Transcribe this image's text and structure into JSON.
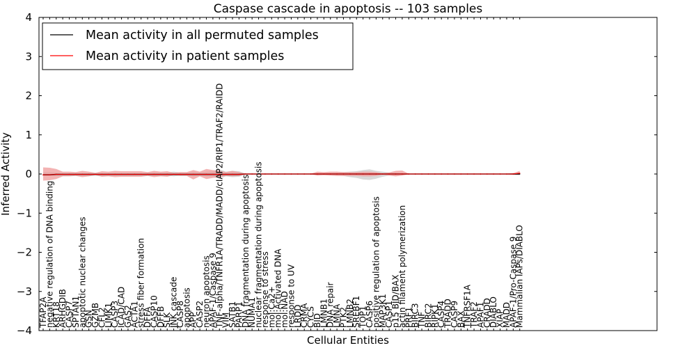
{
  "chart_data": {
    "type": "line",
    "title": "Caspase cascade in apoptosis -- 103 samples",
    "xlabel": "Cellular Entities",
    "ylabel": "Inferred Activity",
    "ylim": [
      -4,
      4
    ],
    "yticks": [
      -4,
      -3,
      -2,
      -1,
      0,
      1,
      2,
      3,
      4
    ],
    "legend": {
      "position": "top-left",
      "entries": [
        {
          "label": "Mean activity in all permuted samples",
          "color": "#000000"
        },
        {
          "label": "Mean activity in patient samples",
          "color": "#ff0000"
        }
      ]
    },
    "categories": [
      "TFAP2A",
      "negative regulation of DNA binding",
      "KRT18",
      "ARHGDIB",
      "CASP7",
      "SPTAN1",
      "apoptotic nuclear changes",
      "GSN",
      "GZMB",
      "CFL2",
      "LIMK1",
      "CASP3",
      "ICAD/CAD",
      "GAS2",
      "ACTA1",
      "stress fiber formation",
      "DFFA",
      "CASP10",
      "DFFB",
      "SLK",
      "JNK cascade",
      "CASP8",
      "apoptosis",
      "APP",
      "CASP2",
      "neuron apoptosis",
      "APAF-1/Caspase 9",
      "TNF-alpha/TNFR1A/TRADD/MADD/cIAP2/RIP1/TRAF2/RAIDD",
      "VIM",
      "SATB1",
      "PARP1",
      "DNA fragmentation during apoptosis",
      "NUMA1",
      "nuclear fragmentation during apoptosis",
      "response to stress",
      "mol:Ca2+",
      "mol:Activated DNA",
      "mol:NAD",
      "response to UV",
      "LRDD",
      "CRMA",
      "CYCS",
      "BID",
      "LMNB1",
      "DNA repair",
      "LMNA",
      "PTK2",
      "LMNB2",
      "SREBF1",
      "TOP1",
      "CASP6",
      "positive regulation of apoptosis",
      "MAP3K1",
      "CASP1",
      "p15 BID/BAX",
      "actin filament polymerization",
      "PRF1",
      "BIRC3",
      "TNF",
      "BIRC2",
      "RIPK1",
      "CASP4",
      "TRADD",
      "CASP9",
      "BAX",
      "TNFRSF1A",
      "TRAF2",
      "APAF1",
      "CRADD",
      "DIABLO",
      "XIAP",
      "MADD",
      "APAF-1/Pro-Caspase 9",
      "Mammalian IAPs/DIABLO"
    ],
    "series": [
      {
        "name": "Mean activity in all permuted samples",
        "color": "#000000",
        "values": [
          -0.02,
          -0.02,
          -0.01,
          -0.01,
          -0.01,
          -0.01,
          -0.01,
          -0.01,
          -0.01,
          -0.01,
          -0.01,
          -0.01,
          -0.01,
          -0.01,
          -0.01,
          -0.01,
          -0.01,
          -0.01,
          -0.01,
          -0.01,
          -0.01,
          -0.01,
          -0.01,
          -0.01,
          -0.01,
          -0.01,
          -0.01,
          -0.01,
          -0.01,
          -0.01,
          -0.01,
          0,
          0,
          0,
          0,
          0,
          0,
          0,
          0,
          0,
          0,
          0,
          0,
          0,
          0,
          0,
          0,
          0,
          0,
          0,
          0,
          0,
          0,
          0,
          0,
          0,
          0,
          0,
          0,
          0,
          0,
          0,
          0,
          0,
          0,
          0,
          0,
          0,
          0,
          0,
          0,
          0,
          0,
          0
        ]
      },
      {
        "name": "Mean activity in patient samples",
        "color": "#ff0000",
        "values": [
          -0.02,
          -0.02,
          -0.01,
          -0.01,
          -0.01,
          -0.01,
          -0.01,
          -0.01,
          -0.01,
          -0.01,
          -0.01,
          -0.01,
          -0.01,
          -0.01,
          -0.01,
          -0.01,
          -0.01,
          -0.01,
          -0.01,
          -0.01,
          -0.01,
          -0.01,
          -0.01,
          -0.01,
          -0.01,
          -0.01,
          -0.01,
          -0.01,
          -0.01,
          -0.01,
          -0.01,
          0,
          0,
          0,
          0,
          0,
          0,
          0,
          0,
          0,
          0,
          0,
          0,
          0,
          0,
          0,
          0,
          0,
          0,
          0,
          0,
          0,
          0,
          0,
          0,
          0,
          0,
          0,
          0,
          0,
          0,
          0,
          0,
          0,
          0,
          0,
          0,
          0,
          0,
          0,
          0,
          0,
          0,
          0.02
        ]
      }
    ],
    "bands": [
      {
        "name": "permuted samples spread",
        "color": "#bfbfbf",
        "upper": [
          0.05,
          0.05,
          0.03,
          0.02,
          0.02,
          0.02,
          0.02,
          0.02,
          0.02,
          0.02,
          0.02,
          0.02,
          0.02,
          0.02,
          0.02,
          0.02,
          0.03,
          0.04,
          0.03,
          0.04,
          0.06,
          0.04,
          0.03,
          0.06,
          0.04,
          0.06,
          0.07,
          0.12,
          0.06,
          0.08,
          0.07,
          0.01,
          0.01,
          0.01,
          0.01,
          0.01,
          0.01,
          0.01,
          0.01,
          0.01,
          0.01,
          0.01,
          0.02,
          0.02,
          0.03,
          0.04,
          0.05,
          0.06,
          0.07,
          0.1,
          0.12,
          0.08,
          0.06,
          0.04,
          0.04,
          0.02,
          0.01,
          0.01,
          0.01,
          0.01,
          0.01,
          0.01,
          0.01,
          0.01,
          0.01,
          0.01,
          0.01,
          0.01,
          0.01,
          0.01,
          0.01,
          0.01,
          0.02,
          0.03
        ],
        "lower": [
          -0.05,
          -0.05,
          -0.03,
          -0.02,
          -0.02,
          -0.02,
          -0.02,
          -0.02,
          -0.02,
          -0.02,
          -0.02,
          -0.02,
          -0.02,
          -0.02,
          -0.02,
          -0.02,
          -0.03,
          -0.04,
          -0.03,
          -0.04,
          -0.06,
          -0.04,
          -0.03,
          -0.06,
          -0.04,
          -0.06,
          -0.07,
          -0.12,
          -0.06,
          -0.08,
          -0.07,
          -0.01,
          -0.01,
          -0.01,
          -0.01,
          -0.01,
          -0.01,
          -0.01,
          -0.01,
          -0.01,
          -0.01,
          -0.01,
          -0.02,
          -0.02,
          -0.03,
          -0.04,
          -0.05,
          -0.08,
          -0.1,
          -0.14,
          -0.15,
          -0.12,
          -0.07,
          -0.04,
          -0.04,
          -0.02,
          -0.01,
          -0.01,
          -0.01,
          -0.01,
          -0.01,
          -0.01,
          -0.01,
          -0.01,
          -0.01,
          -0.01,
          -0.01,
          -0.01,
          -0.01,
          -0.01,
          -0.01,
          -0.01,
          -0.02,
          -0.03
        ]
      },
      {
        "name": "patient samples spread",
        "color": "#ef9a9a",
        "upper": [
          0.17,
          0.16,
          0.13,
          0.06,
          0.06,
          0.05,
          0.08,
          0.06,
          0.03,
          0.07,
          0.06,
          0.08,
          0.07,
          0.07,
          0.07,
          0.07,
          0.05,
          0.08,
          0.06,
          0.07,
          0.03,
          0.05,
          0.05,
          0.1,
          0.06,
          0.13,
          0.1,
          0.08,
          0.05,
          0.08,
          0.05,
          0.01,
          0.01,
          0.01,
          0.01,
          0.01,
          0.01,
          0.01,
          0.01,
          0.01,
          0.01,
          0.01,
          0.06,
          0.05,
          0.06,
          0.06,
          0.05,
          0.05,
          0.05,
          0.06,
          0.06,
          0.05,
          0.02,
          0.04,
          0.08,
          0.09,
          0.01,
          0.01,
          0.01,
          0.01,
          0.01,
          0.01,
          0.01,
          0.01,
          0.01,
          0.01,
          0.01,
          0.01,
          0.01,
          0.01,
          0.01,
          0.01,
          0.02,
          0.08
        ],
        "lower": [
          -0.17,
          -0.16,
          -0.13,
          -0.06,
          -0.06,
          -0.05,
          -0.08,
          -0.06,
          -0.03,
          -0.07,
          -0.06,
          -0.08,
          -0.07,
          -0.07,
          -0.07,
          -0.07,
          -0.05,
          -0.08,
          -0.06,
          -0.07,
          -0.03,
          -0.05,
          -0.05,
          -0.14,
          -0.06,
          -0.13,
          -0.1,
          -0.08,
          -0.05,
          -0.06,
          -0.05,
          -0.01,
          -0.01,
          -0.01,
          -0.01,
          -0.01,
          -0.01,
          -0.01,
          -0.01,
          -0.01,
          -0.01,
          -0.01,
          -0.04,
          -0.03,
          -0.04,
          -0.05,
          -0.05,
          -0.05,
          -0.05,
          -0.06,
          -0.06,
          -0.05,
          -0.02,
          -0.04,
          -0.06,
          -0.04,
          -0.01,
          -0.01,
          -0.01,
          -0.01,
          -0.01,
          -0.01,
          -0.01,
          -0.01,
          -0.01,
          -0.01,
          -0.01,
          -0.01,
          -0.01,
          -0.01,
          -0.01,
          -0.01,
          -0.02,
          -0.02
        ]
      }
    ]
  }
}
